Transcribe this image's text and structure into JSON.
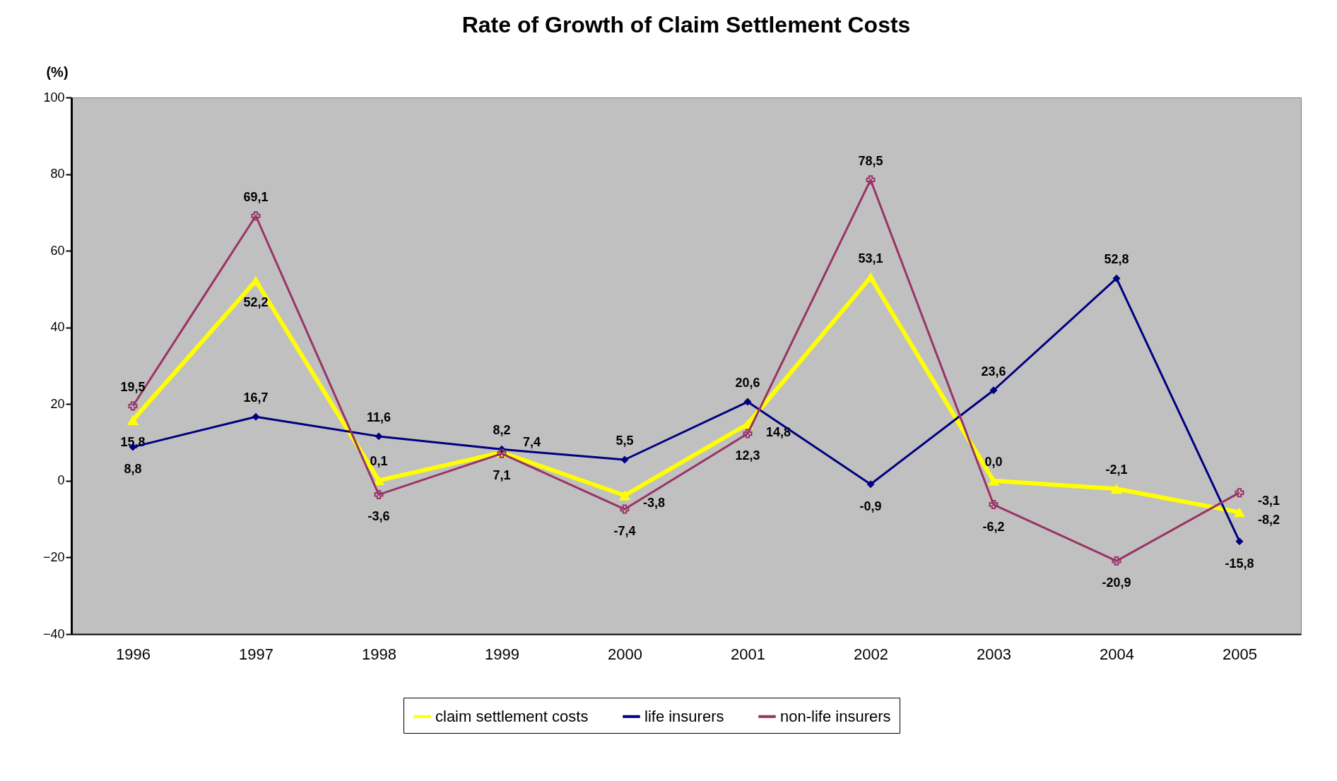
{
  "chart_data": {
    "type": "line",
    "title": "Rate of Growth of Claim Settlement Costs",
    "ylabel": "(%)",
    "categories": [
      "1996",
      "1997",
      "1998",
      "1999",
      "2000",
      "2001",
      "2002",
      "2003",
      "2004",
      "2005"
    ],
    "series": [
      {
        "name": "claim settlement costs",
        "color": "#ffff00",
        "marker": "triangle",
        "values": [
          15.8,
          52.2,
          0.1,
          7.4,
          -3.8,
          14.8,
          53.1,
          0.0,
          -2.1,
          -8.2
        ],
        "value_labels": [
          "15,8",
          "52,2",
          "0,1",
          "7,4",
          "-3,8",
          "14,8",
          "53,1",
          "0,0",
          "-2,1",
          "-8,2"
        ]
      },
      {
        "name": "life insurers",
        "color": "#000080",
        "marker": "diamond",
        "values": [
          8.8,
          16.7,
          11.6,
          8.2,
          5.5,
          20.6,
          -0.9,
          23.6,
          52.8,
          -15.8
        ],
        "value_labels": [
          "8,8",
          "16,7",
          "11,6",
          "8,2",
          "5,5",
          "20,6",
          "-0,9",
          "23,6",
          "52,8",
          "-15,8"
        ]
      },
      {
        "name": "non-life insurers",
        "color": "#993366",
        "marker": "cross",
        "values": [
          19.5,
          69.1,
          -3.6,
          7.1,
          -7.4,
          12.3,
          78.5,
          -6.2,
          -20.9,
          -3.1
        ],
        "value_labels": [
          "19,5",
          "69,1",
          "-3,6",
          "7,1",
          "-7,4",
          "12,3",
          "78,5",
          "-6,2",
          "-20,9",
          "-3,1"
        ]
      }
    ],
    "ylim": [
      -40,
      100
    ],
    "yticks": [
      -40,
      -20,
      0,
      20,
      40,
      60,
      80,
      100
    ],
    "legend": "bottom"
  }
}
